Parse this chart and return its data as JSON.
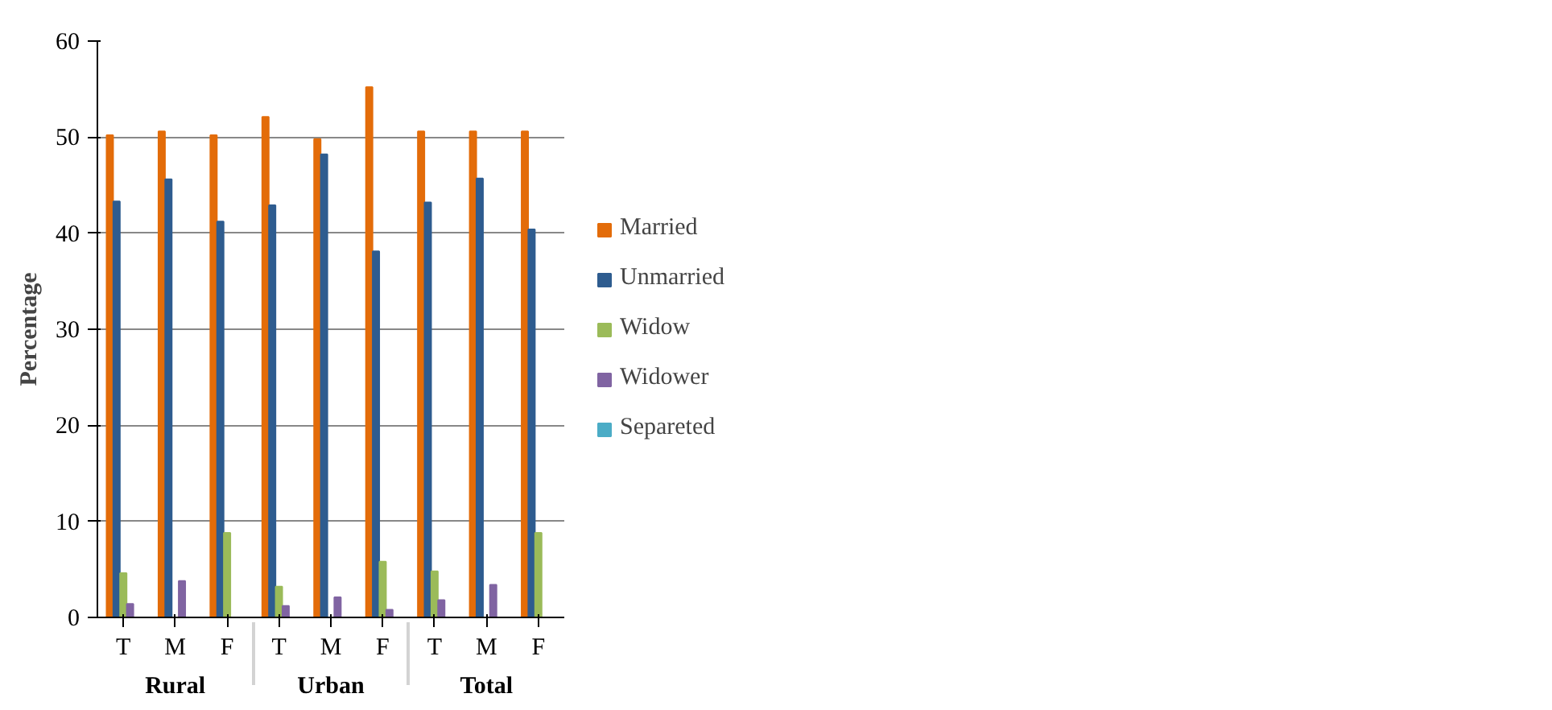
{
  "chart_data": {
    "type": "bar",
    "ylabel": "Percentage",
    "categories": [
      [
        "Rural",
        "T"
      ],
      [
        null,
        "M"
      ],
      [
        null,
        "F"
      ],
      [
        "Urban",
        "T"
      ],
      [
        null,
        "M"
      ],
      [
        null,
        "F"
      ],
      [
        "Total",
        "T"
      ],
      [
        null,
        "M"
      ],
      [
        null,
        "F"
      ]
    ],
    "series": [
      {
        "name": "Married",
        "color": "#e36c09",
        "values": [
          50.2,
          50.6,
          50.2,
          52.1,
          49.8,
          55.2,
          50.6,
          50.6,
          50.6
        ]
      },
      {
        "name": "Unmarried",
        "color": "#2e5c8f",
        "values": [
          43.3,
          45.6,
          41.2,
          42.9,
          48.2,
          38.1,
          43.2,
          45.7,
          40.4
        ]
      },
      {
        "name": "Widow",
        "color": "#9bbb59",
        "values": [
          4.6,
          0,
          8.8,
          3.2,
          0,
          5.8,
          4.8,
          0,
          8.8
        ]
      },
      {
        "name": "Widower",
        "color": "#8064a2",
        "values": [
          1.4,
          3.8,
          0,
          1.2,
          2.1,
          0.8,
          1.8,
          3.4,
          0
        ]
      },
      {
        "name": "Separeted",
        "color": "#4bacc6",
        "values": [
          0,
          0,
          0,
          0,
          0,
          0,
          0,
          0,
          0
        ]
      }
    ],
    "ylim": [
      0,
      60
    ],
    "yticks": [
      0,
      10,
      20,
      30,
      40,
      50,
      60
    ],
    "grid": "y",
    "legend": "right"
  }
}
